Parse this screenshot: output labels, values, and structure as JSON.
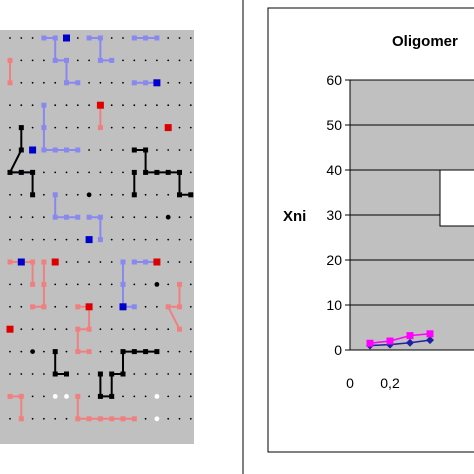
{
  "colors": {
    "plot_background": "#c0c0c0",
    "lattice_background": "#c0c0c0",
    "blue_chain": "#8888ee",
    "blue_site": "#0000cc",
    "red_chain": "#f08080",
    "red_site": "#dd0000",
    "black_chain": "#000000",
    "white_site": "#ffffff",
    "series_dark": "#2020a0",
    "series_magenta": "#ff00ff"
  },
  "chart_data": [
    {
      "type": "scatter-lattice",
      "title": "",
      "grid_cols": 17,
      "grid_rows": 18
    },
    {
      "type": "line",
      "title": "Oligomer",
      "xlabel": "",
      "ylabel": "Xni",
      "xlim": [
        0,
        0.65
      ],
      "ylim": [
        0,
        60
      ],
      "x_ticks": [
        "0",
        "0,2"
      ],
      "y_ticks": [
        "0",
        "10",
        "20",
        "30",
        "40",
        "50",
        "60"
      ],
      "grid": true,
      "legend": "right",
      "series": [
        {
          "x": [
            0.1,
            0.2,
            0.3,
            0.4
          ],
          "y": [
            1.0,
            1.2,
            1.6,
            2.2
          ],
          "color": "#2020a0",
          "marker": "diamond"
        },
        {
          "x": [
            0.1,
            0.2,
            0.3,
            0.4
          ],
          "y": [
            1.5,
            2.0,
            3.2,
            3.6
          ],
          "color": "#ff00ff",
          "marker": "square"
        }
      ]
    }
  ]
}
